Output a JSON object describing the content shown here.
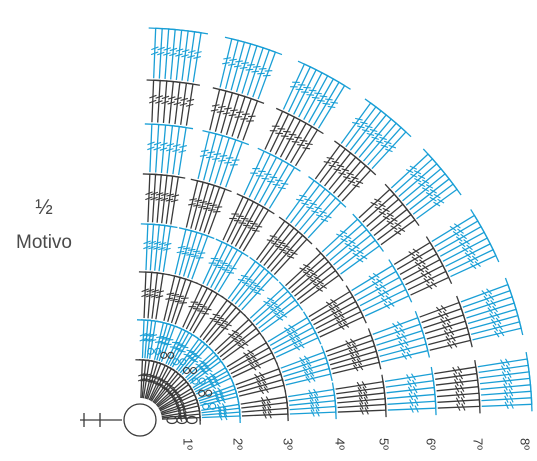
{
  "title": {
    "fraction": "½",
    "word": "Motivo"
  },
  "rows": {
    "labels": [
      "1º",
      "2º",
      "3º",
      "4º",
      "5º",
      "6º",
      "7º",
      "8º"
    ]
  },
  "colors": {
    "blue": "#1a9fd6",
    "dark": "#3a3a3a",
    "background": "#ffffff"
  },
  "legend_symbols": {
    "center": "magic-ring",
    "chain": "chain-stitch",
    "stitch": "treble-crochet-stitch",
    "start": "slip-stitch-line"
  }
}
